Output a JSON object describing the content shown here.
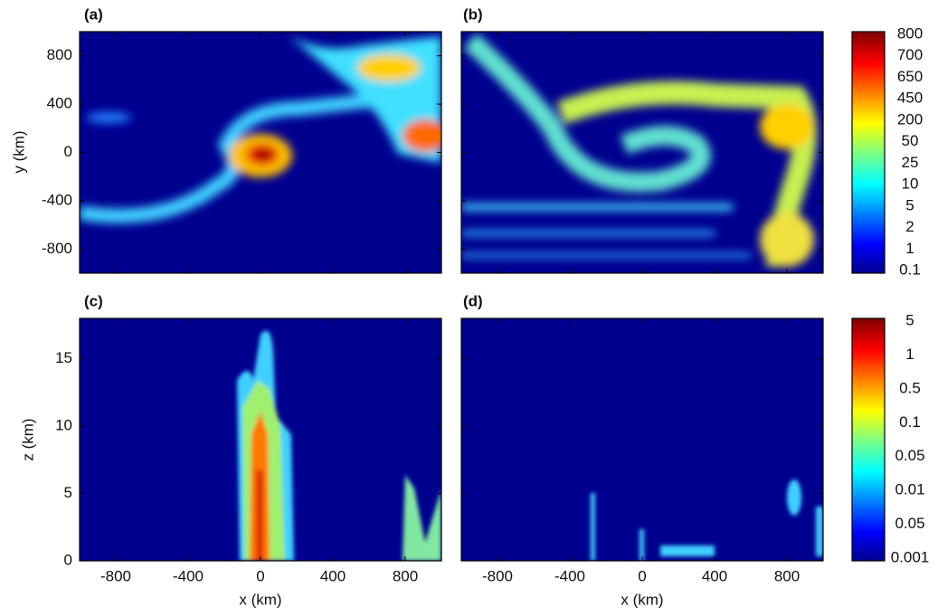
{
  "chart_data": {
    "type": "field-panels",
    "panels": [
      {
        "label": "(a)"
      },
      {
        "label": "(b)"
      },
      {
        "label": "(c)"
      },
      {
        "label": "(d)"
      }
    ],
    "xlabel": "x (km)",
    "xlim": [
      -1000,
      1000
    ],
    "xticks": [
      -800,
      -400,
      0,
      400,
      800
    ],
    "ylabel": "y (km)",
    "ylim": [
      -1000,
      1000
    ],
    "yticks": [
      -800,
      -400,
      0,
      400,
      800
    ],
    "zlabel": "z (km)",
    "zlim": [
      0,
      18
    ],
    "zticks": [
      0,
      5,
      10,
      15
    ],
    "colorbars": [
      {
        "labels": [
          "800",
          "700",
          "650",
          "450",
          "200",
          "50",
          "25",
          "10",
          "5",
          "2",
          "1",
          "0.1"
        ]
      },
      {
        "labels": [
          "5",
          "1",
          "0.5",
          "0.1",
          "0.05",
          "0.01",
          "0.05",
          "0.001"
        ]
      }
    ]
  }
}
